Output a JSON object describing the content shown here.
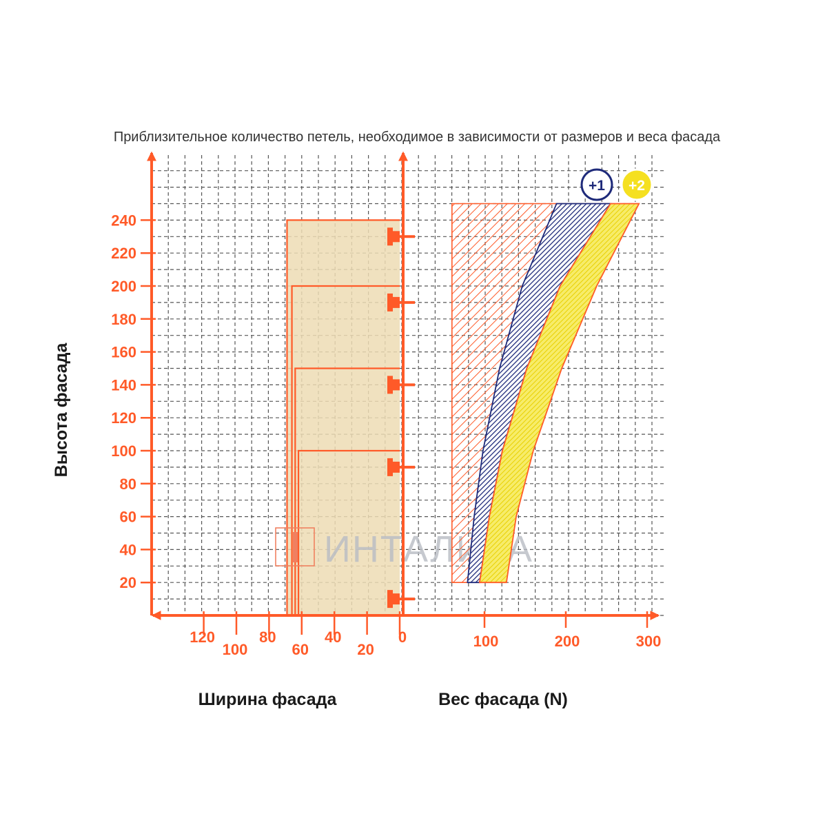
{
  "chart_data": {
    "type": "area",
    "title": "Приблизительное количество петель, необходимое в зависимости от размеров и веса фасада",
    "ylabel": "Высота фасада",
    "xlabel_left": "Ширина фасада",
    "xlabel_right": "Вес фасада (N)",
    "y_ticks": [
      "20",
      "40",
      "60",
      "80",
      "100",
      "120",
      "140",
      "160",
      "180",
      "200",
      "220",
      "240"
    ],
    "width_ticks": [
      "120",
      "100",
      "80",
      "60",
      "40",
      "20",
      "0"
    ],
    "weight_ticks": [
      "100",
      "200",
      "300"
    ],
    "ylim": [
      0,
      270
    ],
    "width_xlim": [
      150,
      0
    ],
    "weight_xlim": [
      0,
      320
    ],
    "height_thresholds": [
      {
        "height": 100,
        "width": 62
      },
      {
        "height": 150,
        "width": 64
      },
      {
        "height": 200,
        "width": 66
      },
      {
        "height": 240,
        "width": 69
      }
    ],
    "hinge_positions": [
      10,
      90,
      140,
      190,
      230
    ],
    "hinge_counts": [
      2,
      3,
      4,
      5
    ],
    "series": [
      {
        "name": "",
        "color": "#ff5a28",
        "band": {
          "height": [
            20,
            250
          ],
          "weight_left": [
            60,
            60
          ],
          "weight_right": [
            60,
            225
          ]
        }
      },
      {
        "name": "+1",
        "color": "#1e2a7a",
        "boundary": [
          [
            20,
            94
          ],
          [
            60,
            106
          ],
          [
            100,
            122
          ],
          [
            150,
            152
          ],
          [
            200,
            193
          ],
          [
            250,
            255
          ]
        ]
      },
      {
        "name": "+2",
        "color": "#f5e020",
        "boundary": [
          [
            20,
            127
          ],
          [
            60,
            139
          ],
          [
            100,
            160
          ],
          [
            150,
            195
          ],
          [
            200,
            238
          ],
          [
            250,
            290
          ]
        ]
      }
    ],
    "grid": true
  },
  "colors": {
    "axis": "#ff5a28",
    "panel_fill": "#eddcb4",
    "blue": "#1e2a7a",
    "yellow": "#f5e020"
  },
  "watermark": {
    "text": "ИНТАЛИКА",
    "icon": "door-logo-icon"
  }
}
